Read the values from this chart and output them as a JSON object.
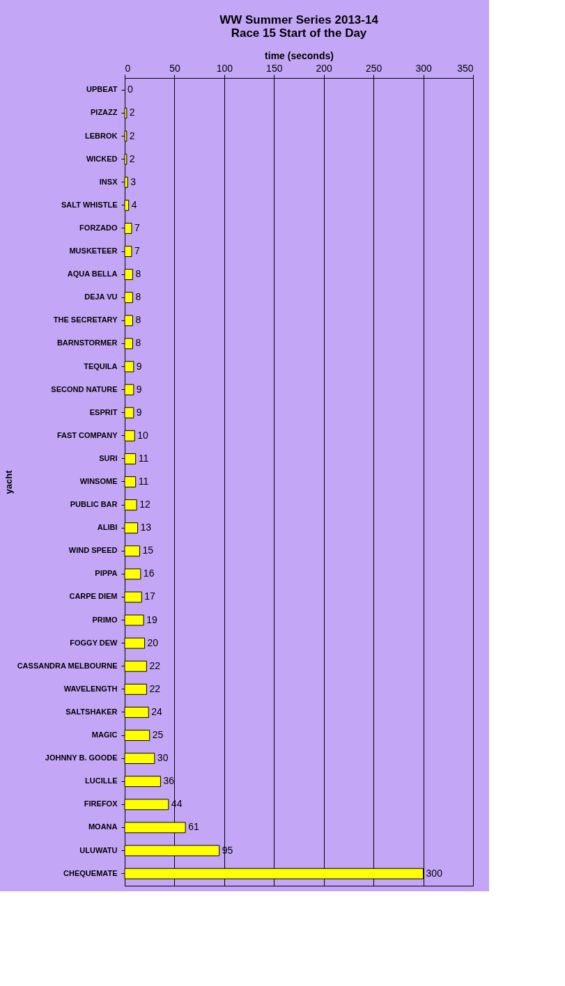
{
  "chart_data": {
    "type": "bar",
    "orientation": "horizontal",
    "title": [
      "WW Summer Series 2013-14",
      "Race 15 Start of the Day"
    ],
    "xlabel": "time (seconds)",
    "ylabel": "yacht",
    "categories": [
      "UPBEAT",
      "PIZAZZ",
      "LEBROK",
      "WICKED",
      "INSX",
      "SALT WHISTLE",
      "FORZADO",
      "MUSKETEER",
      "AQUA BELLA",
      "DEJA VU",
      "THE SECRETARY",
      "BARNSTORMER",
      "TEQUILA",
      "SECOND NATURE",
      "ESPRIT",
      "FAST COMPANY",
      "SURI",
      "WINSOME",
      "PUBLIC BAR",
      "ALIBI",
      "WIND SPEED",
      "PIPPA",
      "CARPE DIEM",
      "PRIMO",
      "FOGGY DEW",
      "CASSANDRA MELBOURNE",
      "WAVELENGTH",
      "SALTSHAKER",
      "MAGIC",
      "JOHNNY B. GOODE",
      "LUCILLE",
      "FIREFOX",
      "MOANA",
      "ULUWATU",
      "CHEQUEMATE"
    ],
    "values": [
      0,
      2,
      2,
      2,
      3,
      4,
      7,
      7,
      8,
      8,
      8,
      8,
      9,
      9,
      9,
      10,
      11,
      11,
      12,
      13,
      15,
      16,
      17,
      19,
      20,
      22,
      22,
      24,
      25,
      30,
      36,
      44,
      61,
      95,
      300
    ],
    "color": "#ffff00",
    "xlim": [
      0,
      350
    ],
    "xticks": [
      0,
      50,
      100,
      150,
      200,
      250,
      300,
      350
    ],
    "grid": "x",
    "data_labels": true
  }
}
